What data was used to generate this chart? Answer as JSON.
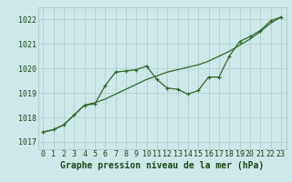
{
  "x": [
    0,
    1,
    2,
    3,
    4,
    5,
    6,
    7,
    8,
    9,
    10,
    11,
    12,
    13,
    14,
    15,
    16,
    17,
    18,
    19,
    20,
    21,
    22,
    23
  ],
  "y_line": [
    1017.4,
    1017.5,
    1017.7,
    1018.1,
    1018.5,
    1018.55,
    1019.3,
    1019.85,
    1019.9,
    1019.95,
    1020.1,
    1019.55,
    1019.2,
    1019.15,
    1018.95,
    1019.1,
    1019.65,
    1019.65,
    1020.5,
    1021.1,
    1021.3,
    1021.55,
    1021.95,
    1022.1
  ],
  "y_smooth": [
    1017.4,
    1017.5,
    1017.7,
    1018.1,
    1018.5,
    1018.6,
    1018.75,
    1018.95,
    1019.15,
    1019.35,
    1019.55,
    1019.7,
    1019.85,
    1019.95,
    1020.05,
    1020.15,
    1020.3,
    1020.5,
    1020.7,
    1020.95,
    1021.2,
    1021.5,
    1021.85,
    1022.1
  ],
  "line_color": "#2d6a2d",
  "bg_color": "#cce8e8",
  "grid_color": "#aacccc",
  "text_color": "#1a4a1a",
  "xlabel": "Graphe pression niveau de la mer (hPa)",
  "ylim": [
    1016.7,
    1022.5
  ],
  "yticks": [
    1017,
    1018,
    1019,
    1020,
    1021,
    1022
  ],
  "xticks": [
    0,
    1,
    2,
    3,
    4,
    5,
    6,
    7,
    8,
    9,
    10,
    11,
    12,
    13,
    14,
    15,
    16,
    17,
    18,
    19,
    20,
    21,
    22,
    23
  ],
  "xlabel_fontsize": 7,
  "tick_fontsize": 6
}
